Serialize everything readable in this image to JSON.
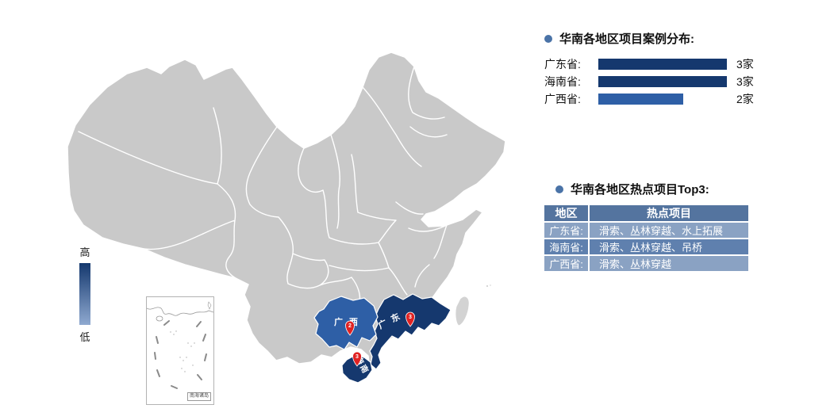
{
  "map": {
    "legend": {
      "high_label": "高",
      "low_label": "低"
    },
    "inset": {
      "label": "南海诸岛"
    },
    "provinces": [
      {
        "name": "广西",
        "label": "广西",
        "pin": "2",
        "count": 2,
        "fill": "#2e5fa6"
      },
      {
        "name": "广东",
        "label": "广东",
        "pin": "3",
        "count": 3,
        "fill": "#15386e"
      },
      {
        "name": "海南",
        "label": "海南",
        "pin": "3",
        "count": 3,
        "fill": "#15386e"
      }
    ],
    "colors": {
      "base_gray": "#c9c9c9",
      "border": "#ffffff",
      "high_blue": "#15386e",
      "mid_blue": "#2e5fa6",
      "pin_red": "#e02222",
      "bullet": "#4a73a7"
    }
  },
  "distribution": {
    "title": "华南各地区项目案例分布:",
    "items": [
      {
        "label": "广东省:",
        "value": "3家",
        "pct": 100
      },
      {
        "label": "海南省:",
        "value": "3家",
        "pct": 100
      },
      {
        "label": "广西省:",
        "value": "2家",
        "pct": 66
      }
    ]
  },
  "hot_projects": {
    "title": "华南各地区热点项目Top3:",
    "columns": [
      "地区",
      "热点项目"
    ],
    "rows": [
      {
        "region": "广东省:",
        "projects": "滑索、丛林穿越、水上拓展"
      },
      {
        "region": "海南省:",
        "projects": "滑索、丛林穿越、吊桥"
      },
      {
        "region": "广西省:",
        "projects": "滑索、丛林穿越"
      }
    ]
  },
  "chart_data": {
    "type": "bar",
    "orientation": "horizontal",
    "title": "华南各地区项目案例分布",
    "categories": [
      "广东省",
      "海南省",
      "广西省"
    ],
    "values": [
      3,
      3,
      2
    ],
    "unit": "家",
    "xlim": [
      0,
      3
    ],
    "legend_position": "none",
    "grid": false
  }
}
